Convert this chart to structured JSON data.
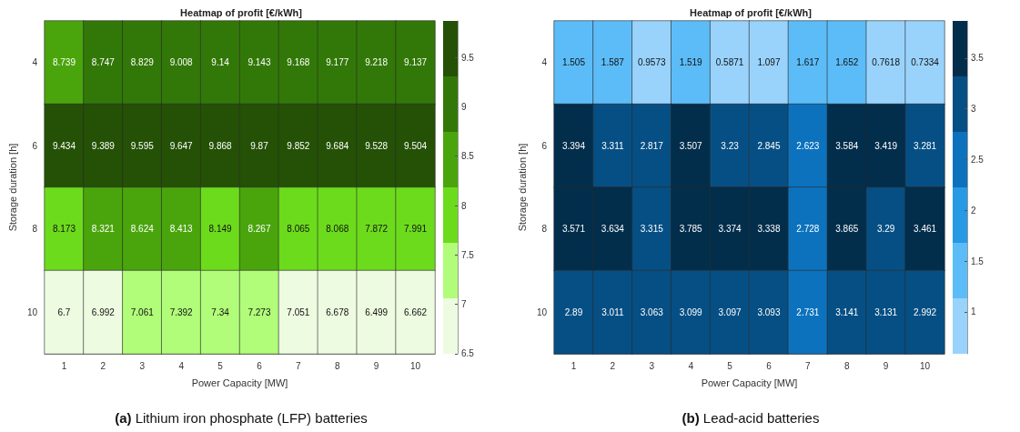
{
  "chart_data": [
    {
      "type": "heatmap",
      "title": "Heatmap of profit [€/kWh]",
      "xlabel": "Power Capacity [MW]",
      "ylabel": "Storage duration [h]",
      "categories": [
        "1",
        "2",
        "3",
        "4",
        "5",
        "6",
        "7",
        "8",
        "9",
        "10"
      ],
      "y_categories": [
        "4",
        "6",
        "8",
        "10"
      ],
      "cells": [
        [
          8.739,
          8.747,
          8.829,
          9.008,
          9.14,
          9.143,
          9.168,
          9.177,
          9.218,
          9.137
        ],
        [
          9.434,
          9.389,
          9.595,
          9.647,
          9.868,
          9.87,
          9.852,
          9.684,
          9.528,
          9.504
        ],
        [
          8.173,
          8.321,
          8.624,
          8.413,
          8.149,
          8.267,
          8.065,
          8.068,
          7.872,
          7.991
        ],
        [
          6.7,
          6.992,
          7.061,
          7.392,
          7.34,
          7.273,
          7.051,
          6.678,
          6.499,
          6.662
        ]
      ],
      "colors": [
        "#edfbe0",
        "#b1fd7a",
        "#6cdb1c",
        "#4aa50c",
        "#327808",
        "#245105"
      ],
      "clim": [
        6.499,
        9.87
      ],
      "cticks": [
        6.5,
        7,
        7.5,
        8,
        8.5,
        9,
        9.5
      ],
      "data_labels": true,
      "grid": false,
      "annotations": [
        "(a) Lithium iron phosphate (LFP) batteries"
      ]
    },
    {
      "type": "heatmap",
      "title": "Heatmap of profit [€/kWh]",
      "xlabel": "Power Capacity [MW]",
      "ylabel": "Storage duration [h]",
      "categories": [
        "1",
        "2",
        "3",
        "4",
        "5",
        "6",
        "7",
        "8",
        "9",
        "10"
      ],
      "y_categories": [
        "4",
        "6",
        "8",
        "10"
      ],
      "cells": [
        [
          1.505,
          1.587,
          0.9573,
          1.519,
          0.5871,
          1.097,
          1.617,
          1.652,
          0.7618,
          0.7334
        ],
        [
          3.394,
          3.311,
          2.817,
          3.507,
          3.23,
          2.845,
          2.623,
          3.584,
          3.419,
          3.281
        ],
        [
          3.571,
          3.634,
          3.315,
          3.785,
          3.374,
          3.338,
          2.728,
          3.865,
          3.29,
          3.461
        ],
        [
          2.89,
          3.011,
          3.063,
          3.099,
          3.097,
          3.093,
          2.731,
          3.141,
          3.131,
          2.992
        ]
      ],
      "colors": [
        "#99d3fc",
        "#5cbcf8",
        "#2899e5",
        "#0c72bd",
        "#064f84",
        "#022e4c"
      ],
      "clim": [
        0.5871,
        3.865
      ],
      "cticks": [
        1,
        1.5,
        2,
        2.5,
        3,
        3.5
      ],
      "data_labels": true,
      "grid": false,
      "annotations": [
        "(b) Lead-acid batteries"
      ]
    }
  ]
}
